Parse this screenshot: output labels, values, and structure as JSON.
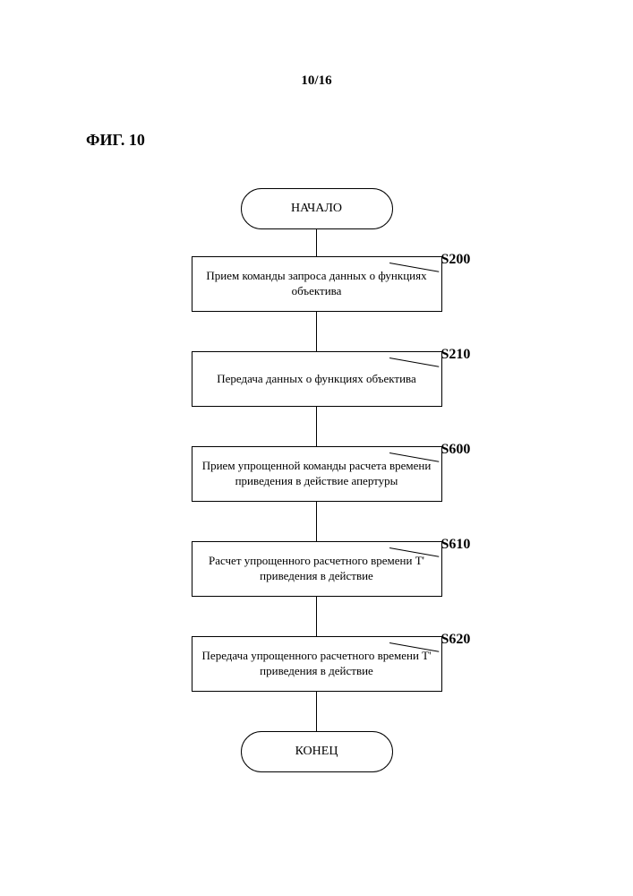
{
  "page_number": "10/16",
  "figure_title": "ФИГ. 10",
  "start_label": "НАЧАЛО",
  "end_label": "КОНЕЦ",
  "steps": [
    {
      "id": "S200",
      "text": "Прием команды запроса данных о функциях объектива"
    },
    {
      "id": "S210",
      "text": "Передача данных о функциях объектива"
    },
    {
      "id": "S600",
      "text": "Прием упрощенной команды расчета времени приведения в действие апертуры"
    },
    {
      "id": "S610",
      "text": "Расчет упрощенного расчетного времени T' приведения в действие"
    },
    {
      "id": "S620",
      "text": "Передача упрощенного расчетного времени T' приведения в действие"
    }
  ]
}
